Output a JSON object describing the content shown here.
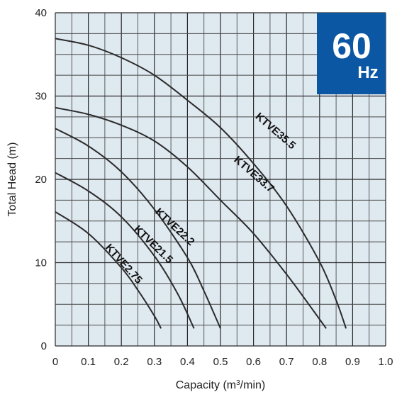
{
  "badge": {
    "value": "60",
    "unit": "Hz",
    "color": "#0b57a4"
  },
  "chart_data": {
    "type": "line",
    "title": "",
    "xlabel": "Capacity (m",
    "xlabel_sup": "3",
    "xlabel_tail": "/min)",
    "ylabel": "Total Head (m)",
    "xlim": [
      0,
      1.0
    ],
    "ylim": [
      0,
      40
    ],
    "x_ticks": [
      "0",
      "0.1",
      "0.2",
      "0.3",
      "0.4",
      "0.5",
      "0.6",
      "0.7",
      "0.8",
      "0.9",
      "1.0"
    ],
    "y_ticks": [
      "0",
      "10",
      "20",
      "30",
      "40"
    ],
    "grid": true,
    "background_color": "#dfe9f0",
    "series": [
      {
        "name": "KTVE35.5",
        "x": [
          0,
          0.1,
          0.2,
          0.3,
          0.4,
          0.5,
          0.6,
          0.7,
          0.8,
          0.85,
          0.88
        ],
        "y": [
          36.9,
          36.1,
          34.6,
          32.5,
          29.5,
          26.2,
          21.9,
          16.8,
          10.1,
          5.5,
          2.1
        ]
      },
      {
        "name": "KTVE33.7",
        "x": [
          0,
          0.1,
          0.2,
          0.3,
          0.4,
          0.5,
          0.6,
          0.7,
          0.78,
          0.82
        ],
        "y": [
          28.6,
          27.8,
          26.5,
          24.6,
          21.5,
          17.5,
          13.5,
          8.6,
          4.3,
          2.1
        ]
      },
      {
        "name": "KTVE22.2",
        "x": [
          0,
          0.1,
          0.2,
          0.3,
          0.4,
          0.45,
          0.5
        ],
        "y": [
          26.1,
          24.0,
          20.9,
          16.4,
          10.6,
          6.6,
          2.1
        ]
      },
      {
        "name": "KTVE21.5",
        "x": [
          0,
          0.1,
          0.2,
          0.3,
          0.37,
          0.42
        ],
        "y": [
          20.8,
          18.6,
          15.5,
          10.8,
          6.3,
          2.1
        ]
      },
      {
        "name": "KTVE2.75",
        "x": [
          0,
          0.1,
          0.2,
          0.25,
          0.3,
          0.32
        ],
        "y": [
          16.1,
          13.5,
          9.4,
          6.7,
          3.6,
          2.1
        ]
      }
    ],
    "curve_labels": [
      {
        "text": "KTVE35.5",
        "x": 0.66,
        "y": 25.5,
        "angle": 41
      },
      {
        "text": "KTVE33.7",
        "x": 0.595,
        "y": 20.3,
        "angle": 41
      },
      {
        "text": "KTVE22.2",
        "x": 0.355,
        "y": 14.0,
        "angle": 43
      },
      {
        "text": "KTVE21.5",
        "x": 0.29,
        "y": 11.9,
        "angle": 44
      },
      {
        "text": "KTVE2.75",
        "x": 0.2,
        "y": 9.6,
        "angle": 48
      }
    ]
  }
}
